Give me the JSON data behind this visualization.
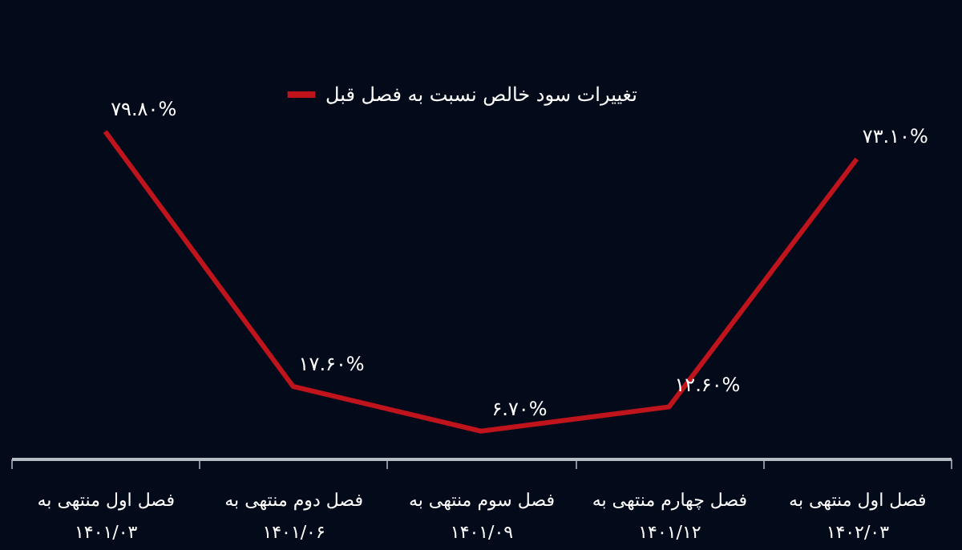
{
  "chart_data": {
    "type": "line",
    "categories": [
      "فصل اول منتهی به\n۱۴۰۱/۰۳",
      "فصل دوم منتهی به\n۱۴۰۱/۰۶",
      "فصل سوم منتهی به\n۱۴۰۱/۰۹",
      "فصل چهارم منتهی به\n۱۴۰۱/۱۲",
      "فصل اول منتهی به\n۱۴۰۲/۰۳"
    ],
    "series": [
      {
        "name": "تغییرات سود خالص نسبت به فصل قبل",
        "color": "#c0141c",
        "values": [
          79.8,
          17.6,
          6.7,
          12.6,
          73.1
        ],
        "value_labels": [
          "۷۹.۸۰%",
          "۱۷.۶۰%",
          "۶.۷۰%",
          "۱۲.۶۰%",
          "۷۳.۱۰%"
        ]
      }
    ],
    "legend": "top",
    "grid": false,
    "tick_labels": "x",
    "marker": "none",
    "line_style": "solid"
  }
}
